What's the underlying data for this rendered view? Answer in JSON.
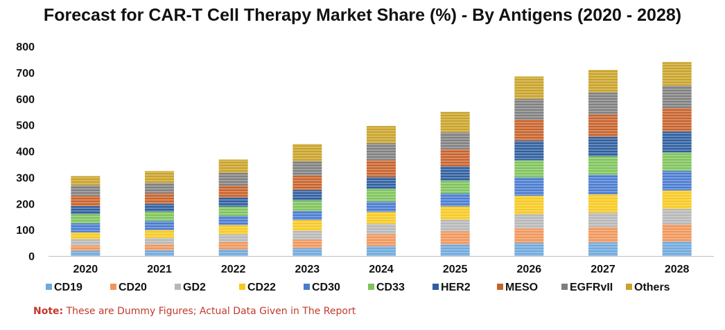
{
  "chart_data": {
    "type": "bar",
    "stacked": true,
    "title": "Forecast for CAR-T Cell Therapy Market Share (%) - By Antigens (2020 - 2028)",
    "xlabel": "",
    "ylabel": "",
    "ylim": [
      0,
      800
    ],
    "yticks": [
      0,
      100,
      200,
      300,
      400,
      500,
      600,
      700,
      800
    ],
    "grid": false,
    "legend": "bottom",
    "categories": [
      "2020",
      "2021",
      "2022",
      "2023",
      "2024",
      "2025",
      "2026",
      "2027",
      "2028"
    ],
    "series": [
      {
        "name": "CD19",
        "color": "#6fa8dc",
        "values": [
          20,
          22,
          25,
          30,
          38,
          44,
          50,
          52,
          55
        ]
      },
      {
        "name": "CD20",
        "color": "#f0955a",
        "values": [
          20,
          22,
          28,
          32,
          45,
          50,
          55,
          58,
          65
        ]
      },
      {
        "name": "GD2",
        "color": "#b7b7b7",
        "values": [
          25,
          25,
          30,
          35,
          40,
          45,
          55,
          55,
          60
        ]
      },
      {
        "name": "CD22",
        "color": "#f7c920",
        "values": [
          25,
          30,
          35,
          40,
          45,
          50,
          70,
          70,
          70
        ]
      },
      {
        "name": "CD30",
        "color": "#4a7bd0",
        "values": [
          35,
          35,
          35,
          35,
          40,
          50,
          70,
          75,
          75
        ]
      },
      {
        "name": "CD33",
        "color": "#7ec35a",
        "values": [
          35,
          35,
          35,
          40,
          48,
          48,
          65,
          70,
          70
        ]
      },
      {
        "name": "HER2",
        "color": "#2e5e9e",
        "values": [
          30,
          30,
          35,
          40,
          45,
          55,
          75,
          75,
          80
        ]
      },
      {
        "name": "MESO",
        "color": "#c7622b",
        "values": [
          40,
          40,
          45,
          55,
          65,
          65,
          80,
          85,
          90
        ]
      },
      {
        "name": "EGFRvII",
        "color": "#7f7f7f",
        "values": [
          40,
          40,
          50,
          55,
          65,
          65,
          80,
          85,
          85
        ]
      },
      {
        "name": "Others",
        "color": "#c9a227",
        "values": [
          35,
          45,
          50,
          65,
          65,
          78,
          85,
          85,
          90
        ]
      }
    ]
  },
  "note": {
    "label": "Note:",
    "text": " These are Dummy Figures; Actual Data Given in The Report"
  }
}
